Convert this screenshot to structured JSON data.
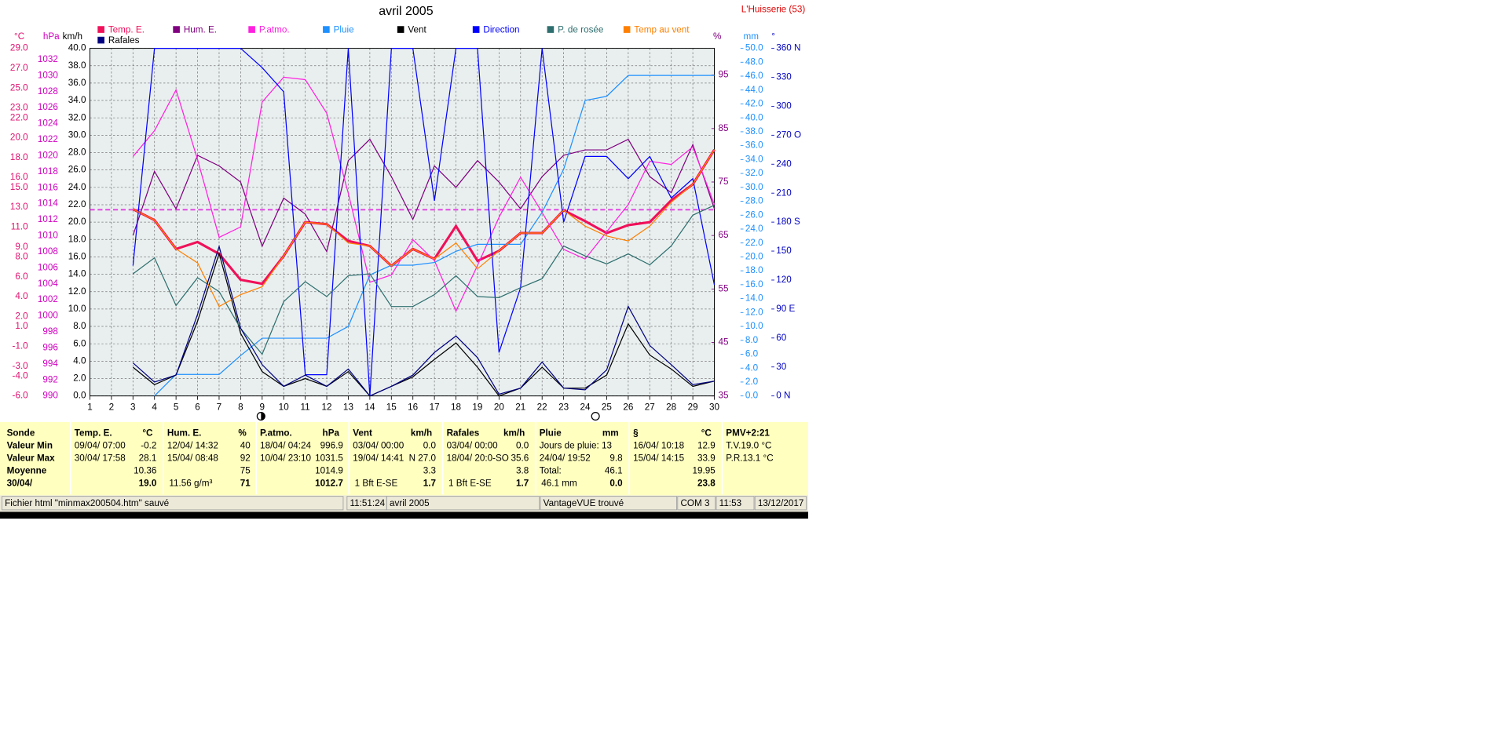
{
  "chart_data": {
    "type": "line",
    "title": "avril 2005",
    "station": "L'Huisserie (53)",
    "xlim": [
      1,
      30
    ],
    "xticks": [
      1,
      2,
      3,
      4,
      5,
      6,
      7,
      8,
      9,
      10,
      11,
      12,
      13,
      14,
      15,
      16,
      17,
      18,
      19,
      20,
      21,
      22,
      23,
      24,
      25,
      26,
      27,
      28,
      29,
      30
    ],
    "grid": true,
    "axes": [
      {
        "id": "temp",
        "label": "°C",
        "color": "#e0106e",
        "lim": [
          -6,
          29
        ],
        "ticks": [
          {
            "value": 29,
            "label": "29.0"
          },
          {
            "value": 27,
            "label": "27.0"
          },
          {
            "value": 25,
            "label": "25.0"
          },
          {
            "value": 23,
            "label": "23.0"
          },
          {
            "value": 22,
            "label": "22.0"
          },
          {
            "value": 20,
            "label": "20.0"
          },
          {
            "value": 18,
            "label": "18.0"
          },
          {
            "value": 16,
            "label": "16.0"
          },
          {
            "value": 15,
            "label": "15.0"
          },
          {
            "value": 13,
            "label": "13.0"
          },
          {
            "value": 11,
            "label": "11.0"
          },
          {
            "value": 9,
            "label": "9.0"
          },
          {
            "value": 8,
            "label": "8.0"
          },
          {
            "value": 6,
            "label": "6.0"
          },
          {
            "value": 4,
            "label": "4.0"
          },
          {
            "value": 2,
            "label": "2.0"
          },
          {
            "value": 1,
            "label": "1.0"
          },
          {
            "value": -1,
            "label": "-1.0"
          },
          {
            "value": -3,
            "label": "-3.0"
          },
          {
            "value": -4,
            "label": "-4.0"
          },
          {
            "value": -6,
            "label": "-6.0"
          }
        ]
      },
      {
        "id": "hpa",
        "label": "hPa",
        "color": "#d000c0",
        "lim": [
          990,
          1033.4
        ],
        "ticks": [
          990,
          992,
          994,
          996,
          998,
          1000,
          1002,
          1004,
          1006,
          1008,
          1010,
          1012,
          1014,
          1016,
          1018,
          1020,
          1022,
          1024,
          1026,
          1028,
          1030,
          1032
        ]
      },
      {
        "id": "kmh",
        "label": "km/h",
        "color": "#000000",
        "lim": [
          0,
          40
        ],
        "ticks": [
          {
            "value": 0,
            "label": "0.0"
          },
          {
            "value": 2,
            "label": "2.0"
          },
          {
            "value": 4,
            "label": "4.0"
          },
          {
            "value": 6,
            "label": "6.0"
          },
          {
            "value": 8,
            "label": "8.0"
          },
          {
            "value": 10,
            "label": "10.0"
          },
          {
            "value": 12,
            "label": "12.0"
          },
          {
            "value": 14,
            "label": "14.0"
          },
          {
            "value": 16,
            "label": "16.0"
          },
          {
            "value": 18,
            "label": "18.0"
          },
          {
            "value": 20,
            "label": "20.0"
          },
          {
            "value": 22,
            "label": "22.0"
          },
          {
            "value": 24,
            "label": "24.0"
          },
          {
            "value": 26,
            "label": "26.0"
          },
          {
            "value": 28,
            "label": "28.0"
          },
          {
            "value": 30,
            "label": "30.0"
          },
          {
            "value": 32,
            "label": "32.0"
          },
          {
            "value": 34,
            "label": "34.0"
          },
          {
            "value": 36,
            "label": "36.0"
          },
          {
            "value": 38,
            "label": "38.0"
          },
          {
            "value": 40,
            "label": "40.0"
          }
        ]
      },
      {
        "id": "pct",
        "label": "%",
        "color": "#800080",
        "lim": [
          35,
          100
        ],
        "ticks": [
          35,
          45,
          55,
          65,
          75,
          85,
          95
        ]
      },
      {
        "id": "mm",
        "label": "mm",
        "color": "#1e90ff",
        "lim": [
          0,
          50
        ],
        "ticks": [
          {
            "value": 0,
            "label": "0.0"
          },
          {
            "value": 2,
            "label": "2.0"
          },
          {
            "value": 4,
            "label": "4.0"
          },
          {
            "value": 6,
            "label": "6.0"
          },
          {
            "value": 8,
            "label": "8.0"
          },
          {
            "value": 10,
            "label": "10.0"
          },
          {
            "value": 12,
            "label": "12.0"
          },
          {
            "value": 14,
            "label": "14.0"
          },
          {
            "value": 16,
            "label": "16.0"
          },
          {
            "value": 18,
            "label": "18.0"
          },
          {
            "value": 20,
            "label": "20.0"
          },
          {
            "value": 22,
            "label": "22.0"
          },
          {
            "value": 24,
            "label": "24.0"
          },
          {
            "value": 26,
            "label": "26.0"
          },
          {
            "value": 28,
            "label": "28.0"
          },
          {
            "value": 30,
            "label": "30.0"
          },
          {
            "value": 32,
            "label": "32.0"
          },
          {
            "value": 34,
            "label": "34.0"
          },
          {
            "value": 36,
            "label": "36.0"
          },
          {
            "value": 38,
            "label": "38.0"
          },
          {
            "value": 40,
            "label": "40.0"
          },
          {
            "value": 42,
            "label": "42.0"
          },
          {
            "value": 44,
            "label": "44.0"
          },
          {
            "value": 46,
            "label": "46.0"
          },
          {
            "value": 48,
            "label": "48.0"
          },
          {
            "value": 50,
            "label": "50.0"
          }
        ]
      },
      {
        "id": "deg",
        "label": "°",
        "color": "#0000c0",
        "lim": [
          0,
          360
        ],
        "ticks": [
          {
            "value": 0,
            "label": "0 N"
          },
          30,
          60,
          {
            "value": 90,
            "label": "90 E"
          },
          120,
          150,
          {
            "value": 180,
            "label": "180 S"
          },
          210,
          240,
          {
            "value": 270,
            "label": "270 O"
          },
          300,
          330,
          {
            "value": 360,
            "label": "360 N"
          }
        ]
      }
    ],
    "reference_line": {
      "axis": "hpa",
      "value": 1013.25,
      "color": "#e040e0"
    },
    "x": [
      3,
      4,
      5,
      6,
      7,
      8,
      9,
      10,
      11,
      12,
      13,
      14,
      15,
      16,
      17,
      18,
      19,
      20,
      21,
      22,
      23,
      24,
      25,
      26,
      27,
      28,
      29,
      30
    ],
    "series": [
      {
        "name": "Temp. E.",
        "color": "#f0105a",
        "axis": "temp",
        "width": 2.5,
        "values": [
          12.8,
          11.7,
          8.8,
          9.5,
          8.3,
          5.7,
          5.3,
          8.1,
          11.5,
          11.3,
          9.6,
          9.1,
          7.1,
          8.8,
          7.8,
          11.1,
          7.6,
          8.6,
          10.4,
          10.4,
          12.7,
          11.6,
          10.4,
          11.2,
          11.5,
          13.7,
          15.3,
          18.8
        ]
      },
      {
        "name": "Hum. E.",
        "color": "#800080",
        "axis": "pct",
        "width": 1,
        "values": [
          65,
          77,
          70,
          80,
          78,
          75,
          63,
          72,
          69,
          62,
          79,
          83,
          76,
          68,
          78,
          74,
          79,
          75,
          70,
          76,
          80,
          81,
          81,
          83,
          76,
          73,
          82,
          70
        ]
      },
      {
        "name": "P.atmo.",
        "color": "#ff20e0",
        "axis": "hpa",
        "width": 1,
        "values": [
          1019.9,
          1023.1,
          1028.2,
          1019.5,
          1009.8,
          1011.1,
          1026.7,
          1029.8,
          1029.5,
          1025.3,
          1015.3,
          1004.2,
          1005.1,
          1009.5,
          1006.9,
          1000.6,
          1006.3,
          1012.3,
          1017.3,
          1012.9,
          1008.3,
          1007.1,
          1010.5,
          1013.9,
          1019.3,
          1018.9,
          1021.1,
          1013.9
        ]
      },
      {
        "name": "Pluie",
        "color": "#1e90ff",
        "axis": "mm",
        "width": 1,
        "values": [
          null,
          0,
          3.1,
          3.1,
          3.1,
          5.8,
          8.3,
          8.3,
          8.3,
          8.3,
          10.0,
          17.4,
          18.8,
          18.8,
          19.2,
          20.8,
          21.8,
          21.8,
          21.8,
          26.4,
          32.6,
          42.5,
          43.1,
          46.1,
          46.1,
          46.1,
          46.1,
          46.1
        ]
      },
      {
        "name": "Vent",
        "color": "#000000",
        "axis": "kmh",
        "width": 1,
        "values": [
          3.3,
          1.3,
          2.4,
          8.6,
          16.4,
          7.2,
          2.8,
          1.1,
          2.0,
          1.1,
          2.8,
          0,
          1.1,
          2.2,
          4.2,
          6.1,
          3.3,
          0,
          0.9,
          3.3,
          0.9,
          0.9,
          2.4,
          8.3,
          4.7,
          3.1,
          1.1,
          1.7
        ]
      },
      {
        "name": "Direction",
        "color": "#0000ff",
        "axis": "deg",
        "width": 1,
        "values": [
          135,
          360,
          360,
          360,
          360,
          360,
          340,
          315,
          22,
          22,
          360,
          0,
          360,
          360,
          202,
          360,
          360,
          45,
          112,
          360,
          180,
          248,
          248,
          225,
          248,
          205,
          225,
          115
        ]
      },
      {
        "name": "P. de rosée",
        "color": "#2e6e6e",
        "axis": "temp",
        "width": 1,
        "values": [
          6.3,
          7.9,
          3.1,
          5.9,
          4.5,
          0.8,
          -1.8,
          3.5,
          5.5,
          4.0,
          6.1,
          6.3,
          3.0,
          3.0,
          4.2,
          6.1,
          4.0,
          3.9,
          4.9,
          5.8,
          9.1,
          8.1,
          7.3,
          8.3,
          7.2,
          9.1,
          12.2,
          13.2
        ]
      },
      {
        "name": "Temp au vent",
        "color": "#ff8000",
        "axis": "temp",
        "width": 1,
        "values": [
          12.8,
          11.7,
          8.8,
          7.4,
          3.0,
          4.2,
          5.0,
          8.1,
          11.5,
          11.3,
          9.4,
          9.1,
          7.1,
          8.8,
          7.8,
          9.4,
          6.8,
          8.6,
          10.4,
          10.4,
          12.7,
          11.1,
          10.1,
          9.6,
          11.1,
          13.5,
          15.3,
          18.8
        ]
      },
      {
        "name": "Rafales",
        "color": "#000080",
        "axis": "kmh",
        "width": 1,
        "values": [
          3.8,
          1.6,
          2.4,
          9.4,
          17.2,
          7.8,
          3.6,
          1.1,
          2.4,
          1.1,
          3.1,
          0,
          1.1,
          2.4,
          5.0,
          6.9,
          4.4,
          0.2,
          0.9,
          3.9,
          0.9,
          0.7,
          3.0,
          10.3,
          5.8,
          3.6,
          1.3,
          1.7
        ]
      }
    ]
  },
  "table": {
    "columns": [
      {
        "header": "Sonde"
      },
      {
        "header": "Temp. E.",
        "unit": "°C"
      },
      {
        "header": "Hum. E.",
        "unit": "%"
      },
      {
        "header": "P.atmo.",
        "unit": "hPa"
      },
      {
        "header": "Vent",
        "unit": "km/h"
      },
      {
        "header": "Rafales",
        "unit": "km/h"
      },
      {
        "header": "Pluie",
        "unit": "mm"
      },
      {
        "header": "§",
        "unit": "°C"
      },
      {
        "header": "PMV+2:21"
      }
    ],
    "rows": [
      {
        "label": "Valeur Min",
        "cells": [
          {
            "left": "09/04/  07:00",
            "right": "-0.2"
          },
          {
            "left": "12/04/  14:32",
            "right": "40"
          },
          {
            "left": "18/04/  04:24",
            "right": "996.9"
          },
          {
            "left": "03/04/  00:00",
            "right": "0.0"
          },
          {
            "left": "03/04/  00:00",
            "right": "0.0"
          },
          {
            "left": "Jours de pluie: 13"
          },
          {
            "left": "16/04/  10:18",
            "right": "12.9"
          },
          {
            "left": "T.V.19.0 °C"
          }
        ]
      },
      {
        "label": "Valeur Max",
        "cells": [
          {
            "left": "30/04/  17:58",
            "right": "28.1"
          },
          {
            "left": "15/04/  08:48",
            "right": "92"
          },
          {
            "left": "10/04/  23:10",
            "right": "1031.5"
          },
          {
            "left": "19/04/  14:41",
            "right": "N 27.0"
          },
          {
            "left": "18/04/  20:0-SO",
            "right": "35.6"
          },
          {
            "left": "24/04/  19:52",
            "right": "9.8"
          },
          {
            "left": "15/04/  14:15",
            "right": "33.9"
          },
          {
            "left": "P.R.13.1 °C"
          }
        ]
      },
      {
        "label": "Moyenne",
        "cells": [
          {
            "right": "10.36"
          },
          {
            "right": "75"
          },
          {
            "right": "1014.9"
          },
          {
            "right": "3.3"
          },
          {
            "right": "3.8"
          },
          {
            "left": "Total:",
            "right": "46.1"
          },
          {
            "right": "19.95"
          },
          {}
        ]
      },
      {
        "label": "30/04/",
        "cells": [
          {
            "right": "19.0"
          },
          {
            "left": "11.56 g/m³",
            "right": "71"
          },
          {
            "right": "1012.7"
          },
          {
            "left": "1 Bft E-SE",
            "right": "1.7"
          },
          {
            "left": "1 Bft E-SE",
            "right": "1.7"
          },
          {
            "left": "46.1 mm",
            "right": "0.0"
          },
          {
            "right": "23.8"
          },
          {}
        ]
      }
    ]
  },
  "status_bar": [
    "Fichier html  \"minmax200504.htm\"  sauvé",
    "11:51:24",
    "avril 2005",
    "VantageVUE trouvé",
    "COM 3",
    "11:53",
    "13/12/2017"
  ]
}
